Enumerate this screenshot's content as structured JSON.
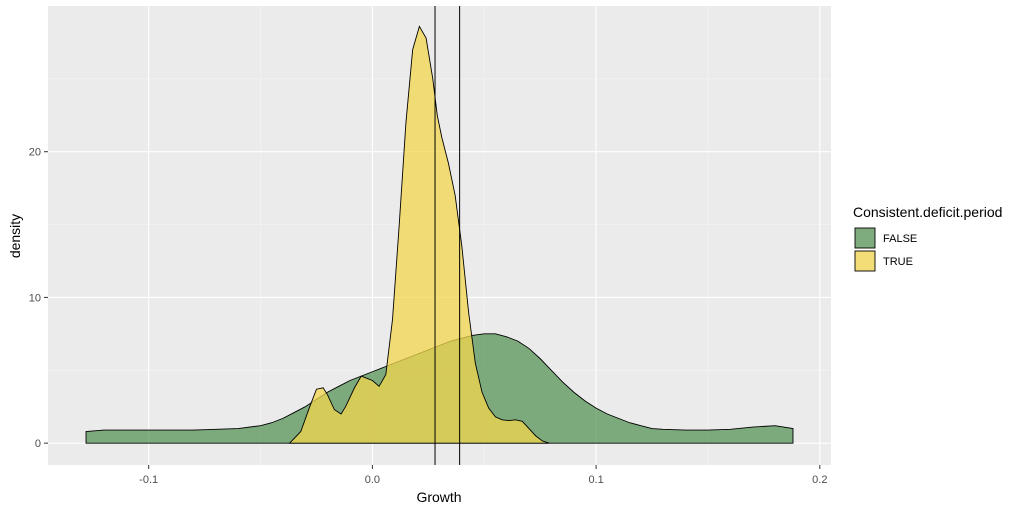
{
  "chart_data": {
    "type": "area",
    "title": "",
    "xlabel": "Growth",
    "ylabel": "density",
    "xlim": [
      -0.145,
      0.205
    ],
    "ylim": [
      -1.5,
      30.0
    ],
    "x_ticks": [
      -0.1,
      0.0,
      0.1,
      0.2
    ],
    "x_tick_labels": [
      "-0.1",
      "0.0",
      "0.1",
      "0.2"
    ],
    "y_ticks": [
      0,
      10,
      20
    ],
    "y_tick_labels": [
      "0",
      "10",
      "20"
    ],
    "grid": true,
    "background": "#EBEBEB",
    "legend": {
      "title": "Consistent.deficit.period",
      "position": "right"
    },
    "vlines": [
      0.028,
      0.039
    ],
    "series": [
      {
        "name": "FALSE",
        "color": "#4D8E4D",
        "opacity": 0.7,
        "x": [
          -0.128,
          -0.12,
          -0.11,
          -0.1,
          -0.09,
          -0.08,
          -0.07,
          -0.06,
          -0.05,
          -0.045,
          -0.04,
          -0.035,
          -0.03,
          -0.025,
          -0.02,
          -0.015,
          -0.01,
          -0.005,
          0.0,
          0.005,
          0.01,
          0.015,
          0.02,
          0.025,
          0.03,
          0.035,
          0.04,
          0.045,
          0.05,
          0.055,
          0.06,
          0.065,
          0.07,
          0.075,
          0.08,
          0.085,
          0.09,
          0.095,
          0.1,
          0.105,
          0.11,
          0.115,
          0.12,
          0.125,
          0.13,
          0.14,
          0.15,
          0.16,
          0.17,
          0.18,
          0.188
        ],
        "y": [
          0.8,
          0.9,
          0.9,
          0.9,
          0.9,
          0.9,
          0.95,
          1.0,
          1.2,
          1.4,
          1.7,
          2.1,
          2.5,
          3.0,
          3.5,
          3.9,
          4.3,
          4.6,
          4.9,
          5.2,
          5.5,
          5.8,
          6.1,
          6.4,
          6.7,
          7.0,
          7.2,
          7.4,
          7.5,
          7.5,
          7.3,
          7.0,
          6.5,
          5.8,
          5.0,
          4.2,
          3.5,
          2.9,
          2.4,
          2.0,
          1.7,
          1.4,
          1.2,
          1.0,
          0.95,
          0.9,
          0.9,
          0.95,
          1.1,
          1.2,
          1.0
        ]
      },
      {
        "name": "TRUE",
        "color": "#F3D64E",
        "opacity": 0.75,
        "x": [
          -0.037,
          -0.032,
          -0.028,
          -0.025,
          -0.022,
          -0.02,
          -0.017,
          -0.014,
          -0.012,
          -0.008,
          -0.005,
          0.0,
          0.003,
          0.006,
          0.009,
          0.012,
          0.015,
          0.018,
          0.021,
          0.024,
          0.027,
          0.029,
          0.031,
          0.034,
          0.037,
          0.04,
          0.043,
          0.046,
          0.049,
          0.052,
          0.055,
          0.058,
          0.061,
          0.064,
          0.067,
          0.07,
          0.073,
          0.076,
          0.079
        ],
        "y": [
          0.0,
          0.8,
          2.5,
          3.7,
          3.8,
          3.3,
          2.3,
          2.0,
          2.5,
          3.8,
          4.6,
          4.3,
          3.9,
          4.7,
          8.5,
          15.0,
          22.0,
          27.0,
          28.6,
          27.8,
          25.0,
          22.5,
          21.0,
          19.2,
          17.0,
          13.5,
          9.0,
          5.5,
          3.5,
          2.4,
          1.8,
          1.6,
          1.55,
          1.6,
          1.5,
          1.0,
          0.5,
          0.15,
          0.0
        ]
      }
    ]
  }
}
